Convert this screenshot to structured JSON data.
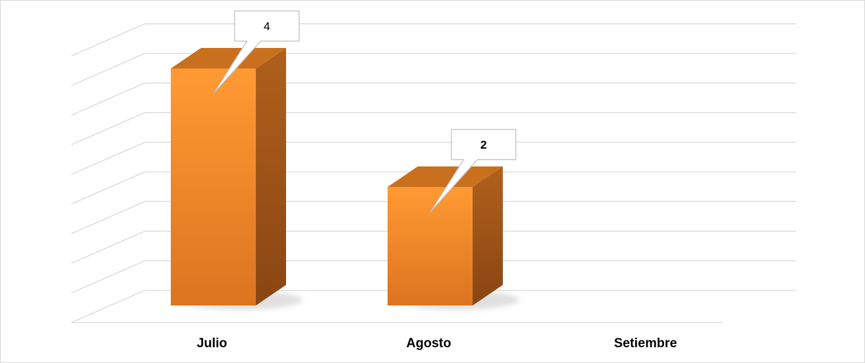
{
  "chart_data": {
    "type": "bar",
    "style": "3d-column",
    "categories": [
      "Julio",
      "Agosto",
      "Setiembre"
    ],
    "series": [
      {
        "values": [
          4,
          2,
          0
        ],
        "color": "#f28e2b"
      }
    ],
    "data_labels": [
      "4",
      "2",
      ""
    ],
    "data_label_bold": [
      false,
      true,
      false
    ],
    "title": "",
    "xlabel": "",
    "ylabel": "",
    "ylim": [
      0,
      4.5
    ],
    "grid": true,
    "legend": "none",
    "colors": {
      "bar_front": "#f28e2b",
      "bar_side": "#a9561a",
      "bar_top": "#c9701f",
      "grid": "#d9d9d9",
      "callout_border": "#bfbfbf",
      "callout_fill": "#ffffff"
    }
  }
}
